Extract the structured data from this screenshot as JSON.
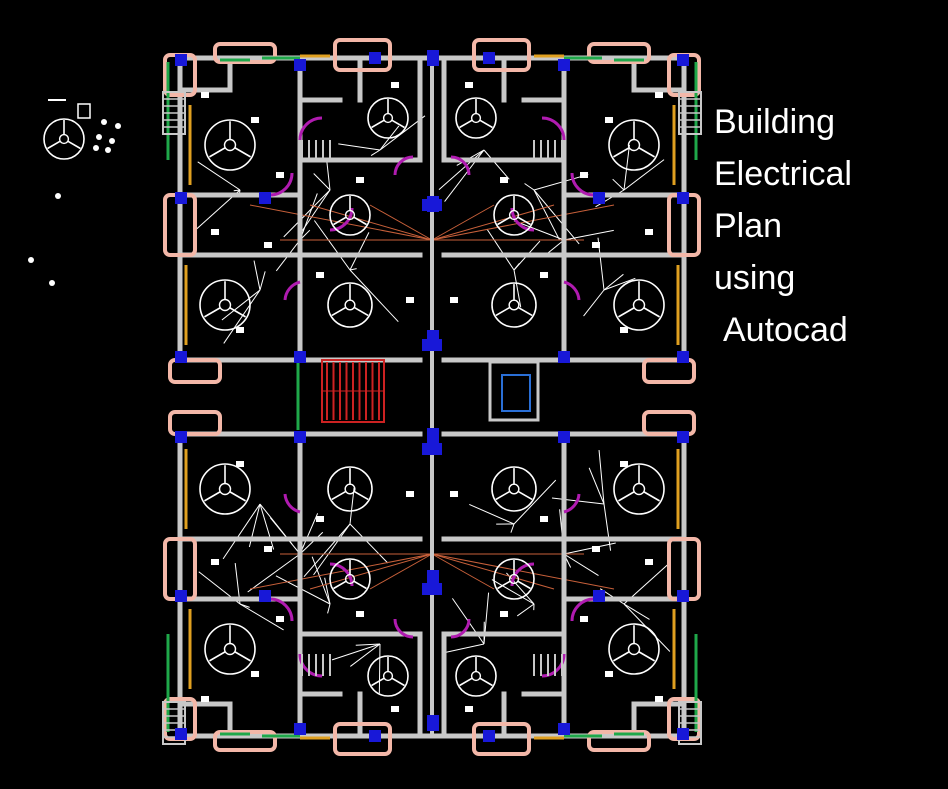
{
  "caption": {
    "line1": "Building",
    "line2": "Electrical",
    "line3": "Plan",
    "line4": "using",
    "line5": "Autocad"
  },
  "colors": {
    "background": "#000000",
    "wall": "#c8c8c8",
    "wiring": "#ffffff",
    "balcony": "#f3b7a8",
    "door_swing": "#b01bb0",
    "column": "#1818d8",
    "window_green": "#1fa84a",
    "window_yellow": "#e0a020",
    "feeder": "#c8603a",
    "stair": "#cc2222",
    "lift": "#2a6fd6"
  },
  "icons": [
    "ceiling-fan-icon",
    "light-point-icon",
    "switch-board-icon",
    "staircase-icon",
    "lift-icon"
  ]
}
